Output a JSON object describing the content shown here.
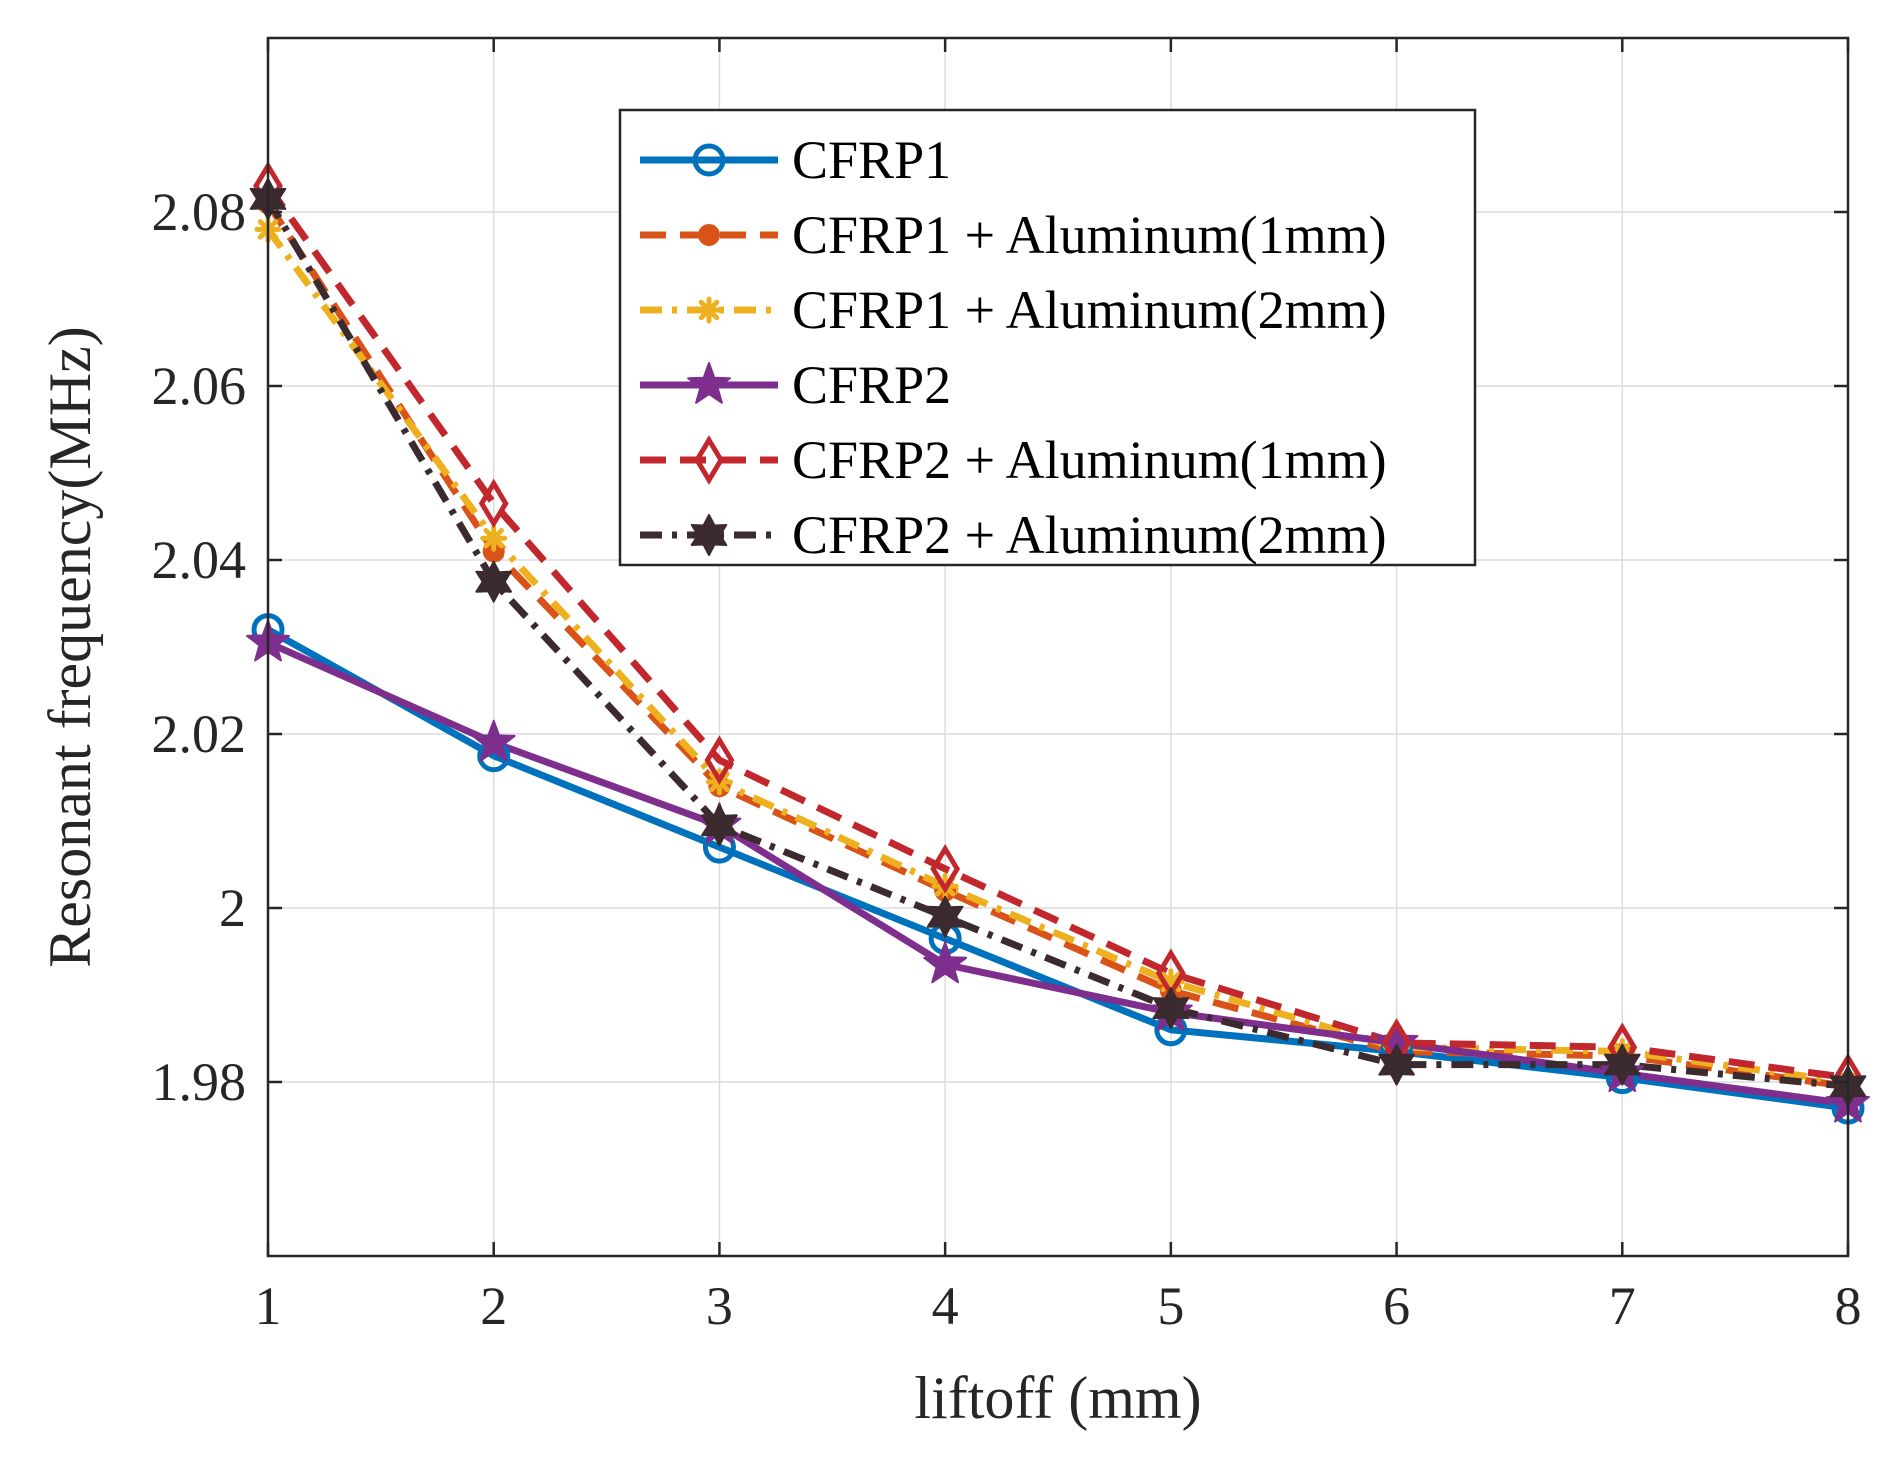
{
  "chart_data": {
    "type": "line",
    "xlabel": "liftoff (mm)",
    "ylabel": "Resonant frequency(MHz)",
    "xlim": [
      1,
      8
    ],
    "ylim": [
      1.96,
      2.1
    ],
    "x_ticks": [
      1,
      2,
      3,
      4,
      5,
      6,
      7,
      8
    ],
    "y_ticks": [
      1.98,
      2,
      2.02,
      2.04,
      2.06,
      2.08
    ],
    "y_tick_labels": [
      "1.98",
      "2",
      "2.02",
      "2.04",
      "2.06",
      "2.08"
    ],
    "grid": true,
    "legend_position": "top-right",
    "x": [
      1,
      2,
      3,
      4,
      5,
      6,
      7,
      8
    ],
    "series": [
      {
        "name": "CFRP1",
        "values": [
          2.032,
          2.0175,
          2.007,
          1.9965,
          1.986,
          1.9835,
          1.9805,
          1.977
        ],
        "color": "#0072BD",
        "dash": "solid",
        "marker": "circle"
      },
      {
        "name": "CFRP1 + Aluminum(1mm)",
        "values": [
          2.081,
          2.041,
          2.014,
          2.002,
          1.9905,
          1.9835,
          1.983,
          1.9795
        ],
        "color": "#D95319",
        "dash": "dashed",
        "marker": "dot"
      },
      {
        "name": "CFRP1 + Aluminum(2mm)",
        "values": [
          2.078,
          2.0425,
          2.0145,
          2.0025,
          1.9915,
          1.984,
          1.9835,
          1.98
        ],
        "color": "#EDB120",
        "dash": "dashdot",
        "marker": "asterisk"
      },
      {
        "name": "CFRP2",
        "values": [
          2.0305,
          2.019,
          2.0095,
          1.9935,
          1.988,
          1.9845,
          1.981,
          1.9775
        ],
        "color": "#7E2F8E",
        "dash": "solid",
        "marker": "star"
      },
      {
        "name": "CFRP2 + Aluminum(1mm)",
        "values": [
          2.083,
          2.0465,
          2.017,
          2.0045,
          1.9925,
          1.9845,
          1.984,
          1.9805
        ],
        "color": "#C1272D",
        "dash": "dashed",
        "marker": "diamond"
      },
      {
        "name": "CFRP2 + Aluminum(2mm)",
        "values": [
          2.0815,
          2.0375,
          2.0095,
          1.999,
          1.9885,
          1.982,
          1.982,
          1.9795
        ],
        "color": "#3B2A2E",
        "dash": "dashdot",
        "marker": "hexagram"
      }
    ]
  }
}
